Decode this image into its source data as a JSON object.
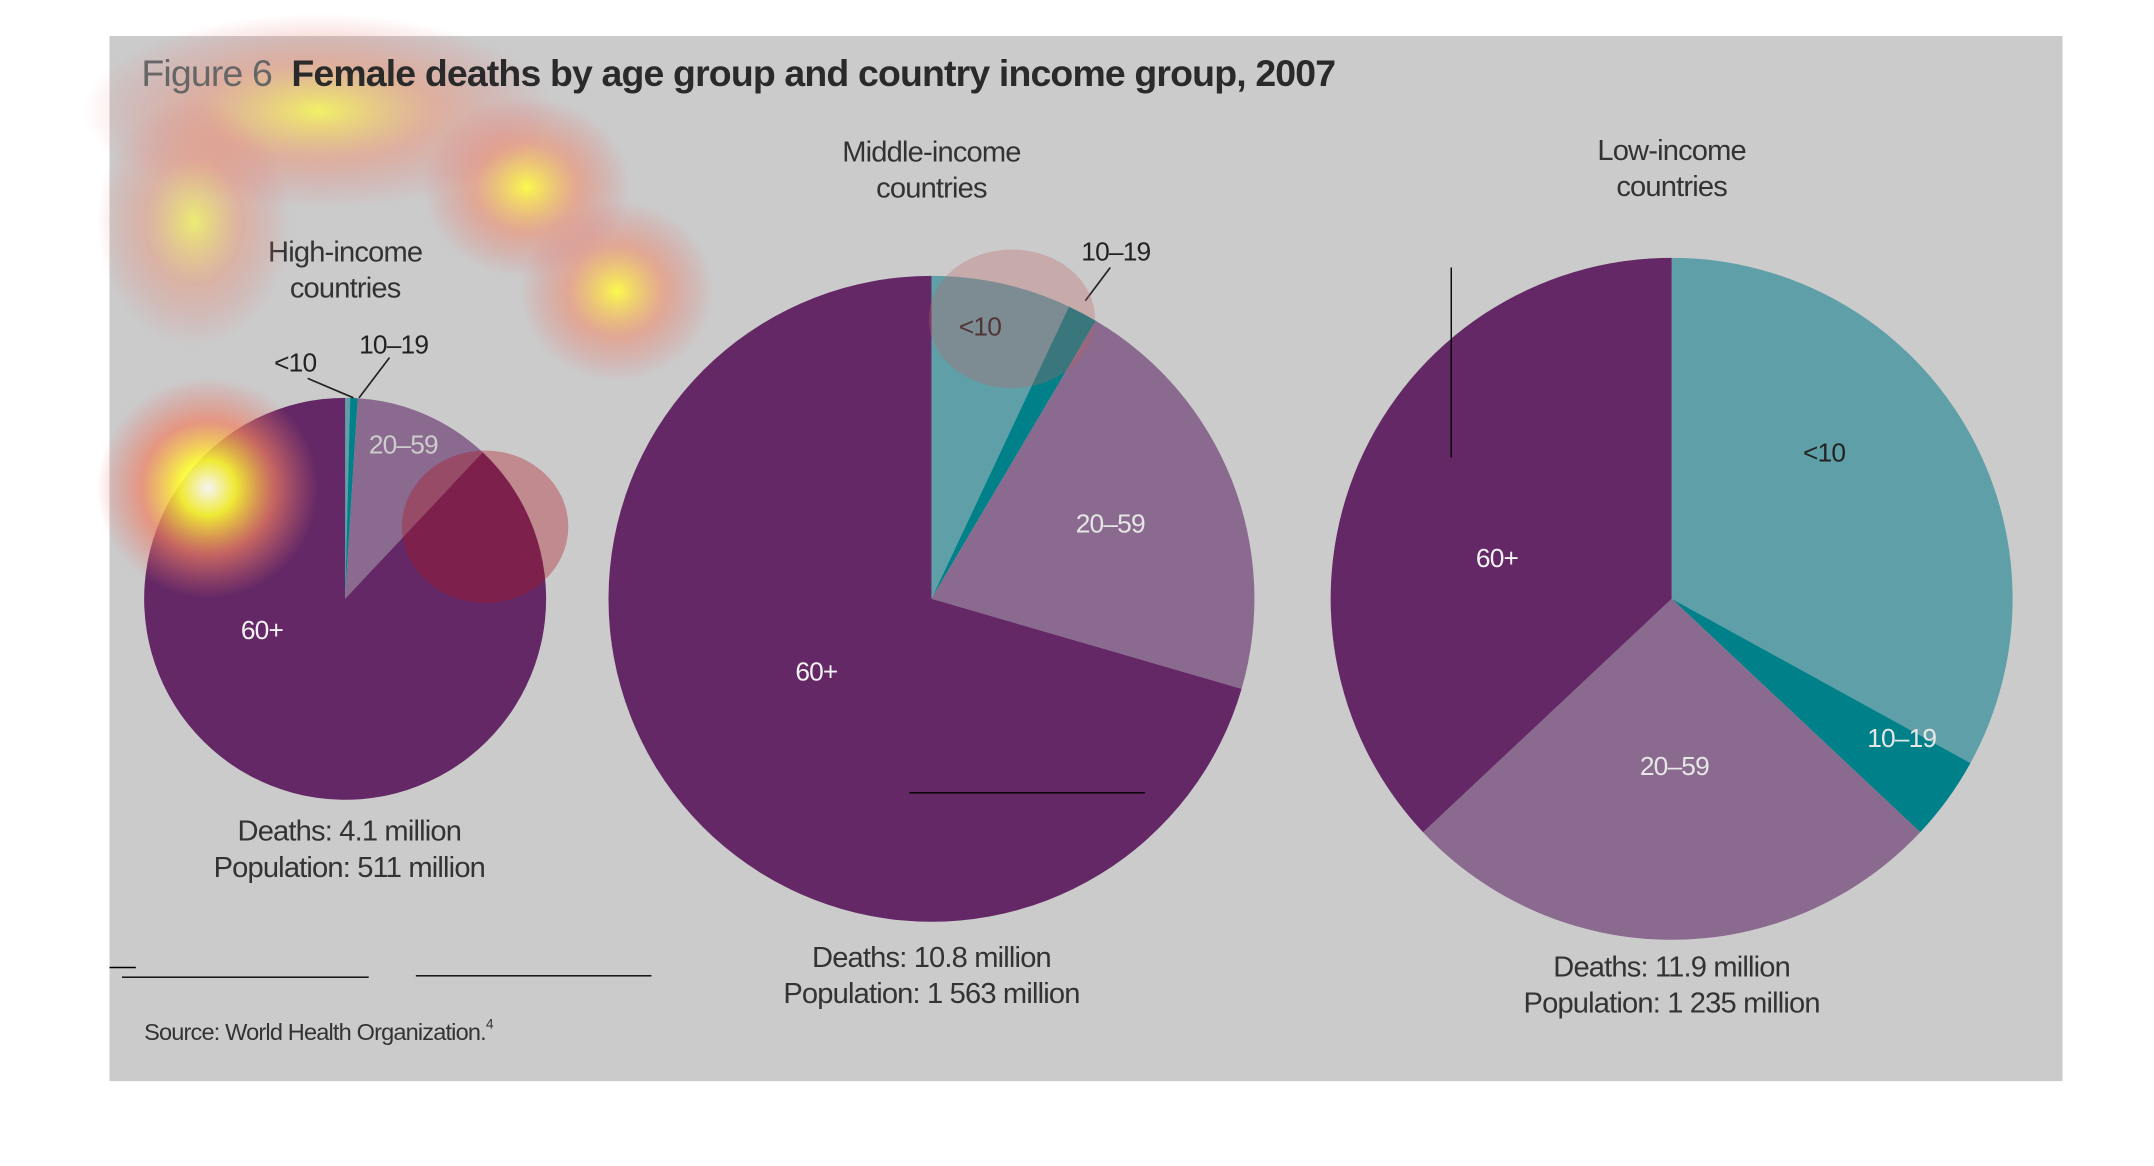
{
  "figure_label": "Figure 6",
  "title": "Female deaths by age group and country income group, 2007",
  "source": "Source: World Health Organization.",
  "source_note": "4",
  "chart_data": [
    {
      "type": "pie",
      "title": [
        "High-income",
        "countries"
      ],
      "categories": [
        "<10",
        "10–19",
        "20–59",
        "60+"
      ],
      "values": [
        0.4,
        0.6,
        11,
        88
      ],
      "colors": [
        "#5fa0a8",
        "#00818a",
        "#8a6a8e",
        "#632865"
      ],
      "footer": [
        "Deaths: 4.1 million",
        "Population: 511 million"
      ]
    },
    {
      "type": "pie",
      "title": [
        "Middle-income",
        "countries"
      ],
      "categories": [
        "<10",
        "10–19",
        "20–59",
        "60+"
      ],
      "values": [
        7,
        1.5,
        21,
        70.5
      ],
      "colors": [
        "#5fa0a8",
        "#00818a",
        "#8a6a8e",
        "#632865"
      ],
      "footer": [
        "Deaths: 10.8 million",
        "Population: 1 563 million"
      ]
    },
    {
      "type": "pie",
      "title": [
        "Low-income",
        "countries"
      ],
      "categories": [
        "<10",
        "10–19",
        "20–59",
        "60+"
      ],
      "values": [
        33,
        4,
        26,
        37
      ],
      "colors": [
        "#5fa0a8",
        "#00818a",
        "#8a6a8e",
        "#632865"
      ],
      "footer": [
        "Deaths: 11.9 million",
        "Population: 1 235 million"
      ]
    }
  ]
}
